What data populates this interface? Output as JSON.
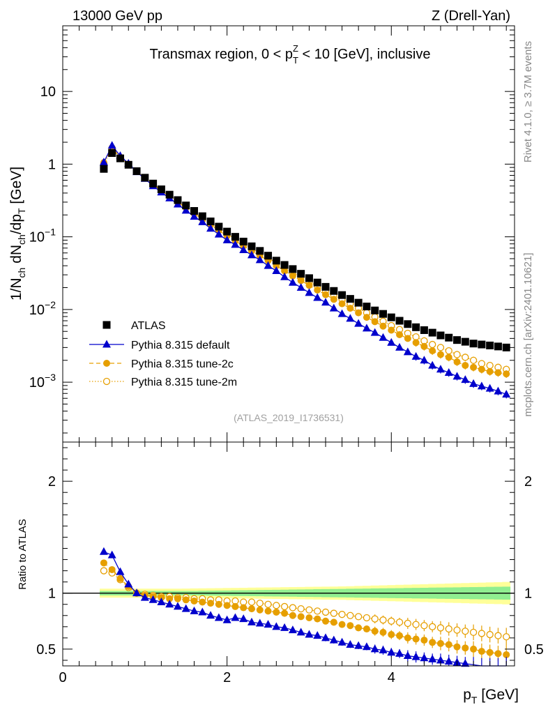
{
  "header": {
    "beam_label": "13000 GeV pp",
    "process_label": "Z (Drell-Yan)"
  },
  "side_labels": {
    "rivet": "Rivet 4.1.0, ≥ 3.7M events",
    "mcplots": "mcplots.cern.ch [arXiv:2401.10621]"
  },
  "chart_data": [
    {
      "type": "scatter",
      "panel": "main",
      "title": "Transmax region, 0 < p_T^Z < 10 [GeV], inclusive",
      "title_parts": {
        "pre": "Transmax region, 0 < p",
        "sub": "T",
        "sup": "Z",
        "post": " < 10 [GeV], inclusive"
      },
      "analysis_id": "(ATLAS_2019_I1736531)",
      "xlabel": "p_T [GeV]",
      "ylabel": "1/N_ch dN_ch/dp_T [GeV]",
      "xlim": [
        0,
        5.5
      ],
      "ylim": [
        0.00015,
        80
      ],
      "yscale": "log",
      "y_ticks": [
        {
          "value": 10,
          "label": "10"
        },
        {
          "value": 1,
          "label": "1"
        },
        {
          "value": 0.1,
          "base": "10",
          "exp": "−1"
        },
        {
          "value": 0.01,
          "base": "10",
          "exp": "−2"
        },
        {
          "value": 0.001,
          "base": "10",
          "exp": "−3"
        }
      ],
      "legend_position": "lower-left",
      "x": [
        0.5,
        0.6,
        0.7,
        0.8,
        0.9,
        1.0,
        1.1,
        1.2,
        1.3,
        1.4,
        1.5,
        1.6,
        1.7,
        1.8,
        1.9,
        2.0,
        2.1,
        2.2,
        2.3,
        2.4,
        2.5,
        2.6,
        2.7,
        2.8,
        2.9,
        3.0,
        3.1,
        3.2,
        3.3,
        3.4,
        3.5,
        3.6,
        3.7,
        3.8,
        3.9,
        4.0,
        4.1,
        4.2,
        4.3,
        4.4,
        4.5,
        4.6,
        4.7,
        4.8,
        4.9,
        5.0,
        5.1,
        5.2,
        5.3,
        5.4
      ],
      "series": [
        {
          "name": "ATLAS",
          "style": "reference",
          "color": "#000000",
          "marker": "filled-square",
          "values": [
            0.86,
            1.42,
            1.2,
            0.98,
            0.8,
            0.65,
            0.54,
            0.45,
            0.38,
            0.32,
            0.27,
            0.227,
            0.192,
            0.163,
            0.138,
            0.118,
            0.1,
            0.086,
            0.074,
            0.064,
            0.055,
            0.047,
            0.041,
            0.036,
            0.031,
            0.027,
            0.0235,
            0.0205,
            0.018,
            0.0158,
            0.014,
            0.0124,
            0.011,
            0.0097,
            0.0087,
            0.0078,
            0.007,
            0.0063,
            0.0057,
            0.0052,
            0.0048,
            0.0044,
            0.0041,
            0.0038,
            0.0036,
            0.0034,
            0.0033,
            0.0032,
            0.0031,
            0.003
          ]
        },
        {
          "name": "Pythia 8.315 default",
          "style": "solid",
          "color": "#0000cc",
          "marker": "filled-triangle",
          "values": [
            1.06,
            1.8,
            1.3,
            1.02,
            0.78,
            0.63,
            0.5,
            0.41,
            0.34,
            0.28,
            0.23,
            0.19,
            0.16,
            0.13,
            0.108,
            0.09,
            0.078,
            0.066,
            0.056,
            0.048,
            0.04,
            0.034,
            0.028,
            0.0235,
            0.02,
            0.017,
            0.0145,
            0.0125,
            0.0104,
            0.0087,
            0.0075,
            0.0064,
            0.0055,
            0.0048,
            0.0041,
            0.0035,
            0.003,
            0.0026,
            0.00225,
            0.002,
            0.0017,
            0.0015,
            0.00135,
            0.0012,
            0.00108,
            0.00095,
            0.00088,
            0.00082,
            0.00075,
            0.00068
          ]
        },
        {
          "name": "Pythia 8.315 tune-2c",
          "style": "dashed",
          "color": "#e69f00",
          "marker": "filled-circle",
          "values": [
            1.05,
            1.68,
            1.25,
            1.0,
            0.79,
            0.64,
            0.52,
            0.43,
            0.36,
            0.3,
            0.25,
            0.208,
            0.175,
            0.146,
            0.122,
            0.103,
            0.088,
            0.075,
            0.064,
            0.055,
            0.047,
            0.04,
            0.034,
            0.029,
            0.025,
            0.0215,
            0.0185,
            0.016,
            0.0138,
            0.012,
            0.0104,
            0.009,
            0.0078,
            0.0068,
            0.0059,
            0.0052,
            0.0045,
            0.004,
            0.0035,
            0.0031,
            0.0027,
            0.0024,
            0.0022,
            0.0019,
            0.0017,
            0.0016,
            0.0015,
            0.0014,
            0.00135,
            0.0013
          ]
        },
        {
          "name": "Pythia 8.315 tune-2m",
          "style": "dotted",
          "color": "#e69f00",
          "marker": "open-circle",
          "values": [
            1.02,
            1.62,
            1.22,
            0.99,
            0.8,
            0.65,
            0.53,
            0.44,
            0.37,
            0.31,
            0.26,
            0.217,
            0.183,
            0.154,
            0.13,
            0.11,
            0.094,
            0.08,
            0.069,
            0.059,
            0.051,
            0.044,
            0.038,
            0.032,
            0.028,
            0.024,
            0.021,
            0.018,
            0.0158,
            0.0138,
            0.012,
            0.0104,
            0.009,
            0.0079,
            0.0069,
            0.006,
            0.0053,
            0.0047,
            0.0042,
            0.0037,
            0.0033,
            0.003,
            0.0027,
            0.0024,
            0.0022,
            0.002,
            0.0018,
            0.0017,
            0.0016,
            0.0015
          ]
        }
      ]
    },
    {
      "type": "scatter",
      "panel": "ratio",
      "ylabel": "Ratio to ATLAS",
      "xlabel": "p_T [GeV]",
      "xlim": [
        0,
        5.5
      ],
      "ylim": [
        0.35,
        2.35
      ],
      "x_ticks": [
        0,
        2,
        4
      ],
      "y_ticks": [
        0.5,
        1,
        2
      ],
      "reference_line": 1,
      "x": [
        0.5,
        0.6,
        0.7,
        0.8,
        0.9,
        1.0,
        1.1,
        1.2,
        1.3,
        1.4,
        1.5,
        1.6,
        1.7,
        1.8,
        1.9,
        2.0,
        2.1,
        2.2,
        2.3,
        2.4,
        2.5,
        2.6,
        2.7,
        2.8,
        2.9,
        3.0,
        3.1,
        3.2,
        3.3,
        3.4,
        3.5,
        3.6,
        3.7,
        3.8,
        3.9,
        4.0,
        4.1,
        4.2,
        4.3,
        4.4,
        4.5,
        4.6,
        4.7,
        4.8,
        4.9,
        5.0,
        5.1,
        5.2,
        5.3,
        5.4
      ],
      "bands": {
        "inner_color": "#90ee90",
        "outer_color": "#ffff99",
        "inner_halfwidth": [
          0.02,
          0.02,
          0.02,
          0.02,
          0.02,
          0.02,
          0.02,
          0.02,
          0.02,
          0.02,
          0.02,
          0.02,
          0.021,
          0.022,
          0.023,
          0.024,
          0.025,
          0.026,
          0.027,
          0.028,
          0.029,
          0.03,
          0.031,
          0.032,
          0.033,
          0.034,
          0.035,
          0.036,
          0.037,
          0.038,
          0.039,
          0.04,
          0.041,
          0.042,
          0.043,
          0.044,
          0.045,
          0.046,
          0.047,
          0.048,
          0.049,
          0.05,
          0.051,
          0.052,
          0.053,
          0.054,
          0.055,
          0.056,
          0.057,
          0.058
        ],
        "outer_halfwidth": [
          0.04,
          0.04,
          0.04,
          0.04,
          0.04,
          0.04,
          0.04,
          0.04,
          0.04,
          0.04,
          0.041,
          0.042,
          0.043,
          0.044,
          0.045,
          0.046,
          0.047,
          0.048,
          0.049,
          0.05,
          0.051,
          0.052,
          0.053,
          0.054,
          0.055,
          0.056,
          0.057,
          0.058,
          0.059,
          0.06,
          0.062,
          0.064,
          0.066,
          0.068,
          0.07,
          0.072,
          0.074,
          0.076,
          0.078,
          0.08,
          0.082,
          0.084,
          0.086,
          0.088,
          0.09,
          0.092,
          0.094,
          0.096,
          0.098,
          0.1
        ]
      },
      "series": [
        {
          "name": "Pythia 8.315 default",
          "style": "solid",
          "color": "#0000cc",
          "marker": "filled-triangle",
          "values": [
            1.37,
            1.34,
            1.19,
            1.08,
            1.0,
            0.96,
            0.94,
            0.92,
            0.9,
            0.88,
            0.86,
            0.84,
            0.83,
            0.8,
            0.78,
            0.76,
            0.78,
            0.77,
            0.74,
            0.73,
            0.72,
            0.7,
            0.69,
            0.67,
            0.65,
            0.63,
            0.62,
            0.6,
            0.58,
            0.56,
            0.54,
            0.53,
            0.52,
            0.5,
            0.49,
            0.47,
            0.46,
            0.44,
            0.43,
            0.42,
            0.41,
            0.4,
            0.39,
            0.38,
            0.37,
            0.36,
            0.35,
            0.35,
            0.35,
            0.35
          ],
          "errors": [
            0.01,
            0.01,
            0.01,
            0.01,
            0.01,
            0.01,
            0.01,
            0.01,
            0.01,
            0.01,
            0.01,
            0.01,
            0.01,
            0.01,
            0.01,
            0.01,
            0.01,
            0.01,
            0.01,
            0.01,
            0.02,
            0.02,
            0.02,
            0.02,
            0.02,
            0.02,
            0.02,
            0.03,
            0.03,
            0.03,
            0.03,
            0.03,
            0.03,
            0.04,
            0.04,
            0.04,
            0.04,
            0.05,
            0.05,
            0.05,
            0.05,
            0.06,
            0.06,
            0.06,
            0.06,
            0.07,
            0.07,
            0.07,
            0.07,
            0.08
          ]
        },
        {
          "name": "Pythia 8.315 tune-2c",
          "style": "dashed",
          "color": "#e69f00",
          "marker": "filled-circle",
          "values": [
            1.27,
            1.21,
            1.13,
            1.06,
            1.0,
            0.98,
            0.97,
            0.96,
            0.95,
            0.95,
            0.94,
            0.93,
            0.92,
            0.91,
            0.9,
            0.89,
            0.88,
            0.87,
            0.86,
            0.85,
            0.84,
            0.83,
            0.82,
            0.8,
            0.79,
            0.78,
            0.77,
            0.75,
            0.74,
            0.72,
            0.71,
            0.69,
            0.68,
            0.66,
            0.65,
            0.63,
            0.62,
            0.6,
            0.59,
            0.58,
            0.56,
            0.55,
            0.54,
            0.52,
            0.51,
            0.5,
            0.48,
            0.47,
            0.46,
            0.45
          ],
          "errors": [
            0.01,
            0.01,
            0.01,
            0.01,
            0.01,
            0.01,
            0.01,
            0.01,
            0.01,
            0.01,
            0.01,
            0.01,
            0.01,
            0.01,
            0.01,
            0.01,
            0.01,
            0.01,
            0.01,
            0.01,
            0.02,
            0.02,
            0.02,
            0.02,
            0.02,
            0.02,
            0.02,
            0.03,
            0.03,
            0.03,
            0.03,
            0.03,
            0.03,
            0.04,
            0.04,
            0.04,
            0.04,
            0.05,
            0.05,
            0.05,
            0.05,
            0.06,
            0.06,
            0.06,
            0.06,
            0.07,
            0.07,
            0.07,
            0.07,
            0.08
          ]
        },
        {
          "name": "Pythia 8.315 tune-2m",
          "style": "dotted",
          "color": "#e69f00",
          "marker": "open-circle",
          "values": [
            1.2,
            1.18,
            1.12,
            1.05,
            1.0,
            0.99,
            0.98,
            0.97,
            0.97,
            0.96,
            0.96,
            0.95,
            0.95,
            0.94,
            0.94,
            0.93,
            0.93,
            0.92,
            0.92,
            0.91,
            0.9,
            0.89,
            0.88,
            0.87,
            0.86,
            0.85,
            0.84,
            0.83,
            0.82,
            0.81,
            0.8,
            0.79,
            0.78,
            0.77,
            0.76,
            0.75,
            0.74,
            0.73,
            0.72,
            0.71,
            0.7,
            0.69,
            0.68,
            0.67,
            0.66,
            0.65,
            0.64,
            0.63,
            0.62,
            0.61
          ],
          "errors": [
            0.01,
            0.01,
            0.01,
            0.01,
            0.01,
            0.01,
            0.01,
            0.01,
            0.01,
            0.01,
            0.01,
            0.01,
            0.01,
            0.01,
            0.01,
            0.01,
            0.01,
            0.01,
            0.01,
            0.01,
            0.02,
            0.02,
            0.02,
            0.02,
            0.02,
            0.02,
            0.02,
            0.03,
            0.03,
            0.03,
            0.03,
            0.03,
            0.03,
            0.04,
            0.04,
            0.04,
            0.04,
            0.05,
            0.05,
            0.05,
            0.05,
            0.06,
            0.06,
            0.06,
            0.06,
            0.07,
            0.07,
            0.07,
            0.07,
            0.08
          ]
        }
      ]
    }
  ]
}
